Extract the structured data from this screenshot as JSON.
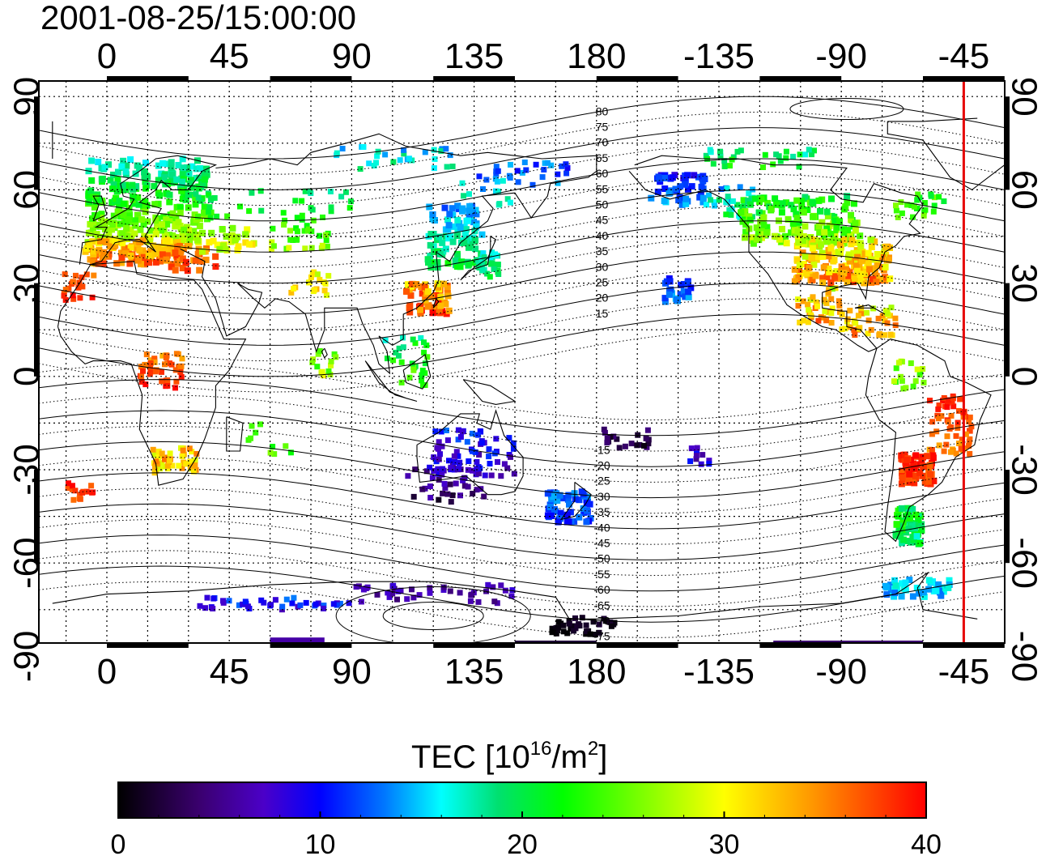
{
  "title": "2001-08-25/15:00:00",
  "map": {
    "lon_top_ticks": [
      "0",
      "45",
      "90",
      "135",
      "180",
      "-135",
      "-90",
      "-45"
    ],
    "lon_bottom_ticks": [
      "0",
      "45",
      "90",
      "135",
      "180",
      "-135",
      "-90",
      "-45"
    ],
    "lat_left_ticks": [
      "90",
      "60",
      "30",
      "0",
      "-30",
      "-60",
      "-90"
    ],
    "lat_right_ticks": [
      "90",
      "60",
      "30",
      "0",
      "-30",
      "-60",
      "-90"
    ],
    "contour_labels_north": [
      "80",
      "75",
      "70",
      "65",
      "60",
      "55",
      "50",
      "45",
      "40",
      "35",
      "30",
      "25",
      "20",
      "15"
    ],
    "contour_labels_south": [
      "-15",
      "-20",
      "-25",
      "-30",
      "-35",
      "-40",
      "-45",
      "-50",
      "-55",
      "-60",
      "-65",
      "-70",
      "-75"
    ],
    "red_meridian_lon": -45,
    "colors": {
      "red_line": "#e60000"
    }
  },
  "colorbar": {
    "label_main": "TEC  [10",
    "label_sup1": "16",
    "label_mid": "/m",
    "label_sup2": "2",
    "label_end": "]",
    "ticks": [
      "0",
      "10",
      "20",
      "30",
      "40"
    ],
    "range": [
      0,
      40
    ],
    "stops": [
      "#000000",
      "#3a006e",
      "#4b00c8",
      "#0000ff",
      "#0078ff",
      "#00ffff",
      "#00e070",
      "#00ff00",
      "#ffff00",
      "#ff9600",
      "#ff0000"
    ]
  }
}
